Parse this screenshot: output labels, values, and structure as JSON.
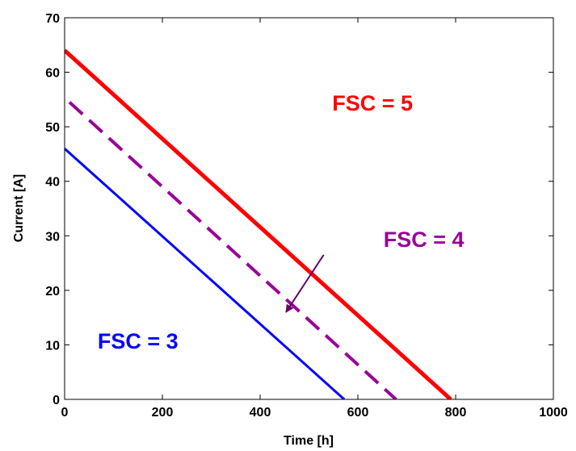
{
  "chart_data": {
    "type": "line",
    "title": "",
    "xlabel": "Time [h]",
    "ylabel": "Current [A]",
    "xlim": [
      0,
      1000
    ],
    "ylim": [
      0,
      70
    ],
    "xticks": [
      0,
      200,
      400,
      600,
      800,
      1000
    ],
    "yticks": [
      0,
      10,
      20,
      30,
      40,
      50,
      60,
      70
    ],
    "xtick_labels": [
      "0",
      "200",
      "400",
      "600",
      "800",
      "1000"
    ],
    "ytick_labels": [
      "0",
      "10",
      "20",
      "30",
      "40",
      "50",
      "60",
      "70"
    ],
    "grid": false,
    "legend": "none",
    "series": [
      {
        "name": "FSC = 5",
        "color": "#ff0000",
        "style": "solid",
        "x": [
          0,
          790
        ],
        "y": [
          64,
          0
        ]
      },
      {
        "name": "FSC = 4",
        "color": "#990099",
        "style": "dashed",
        "x": [
          10,
          678
        ],
        "y": [
          54.5,
          0
        ]
      },
      {
        "name": "FSC = 3",
        "color": "#0000ff",
        "style": "solid",
        "x": [
          0,
          572
        ],
        "y": [
          46,
          0
        ]
      }
    ],
    "annotations": [
      {
        "text": "FSC = 5",
        "color": "#ff0000",
        "x": 630,
        "y": 53
      },
      {
        "text": "FSC = 4",
        "color": "#990099",
        "x": 735,
        "y": 28
      },
      {
        "text": "FSC = 3",
        "color": "#0000ff",
        "x": 150,
        "y": 9.3
      }
    ],
    "arrow": {
      "color": "#660066",
      "from": [
        530,
        26.5
      ],
      "to": [
        453,
        16
      ]
    }
  }
}
